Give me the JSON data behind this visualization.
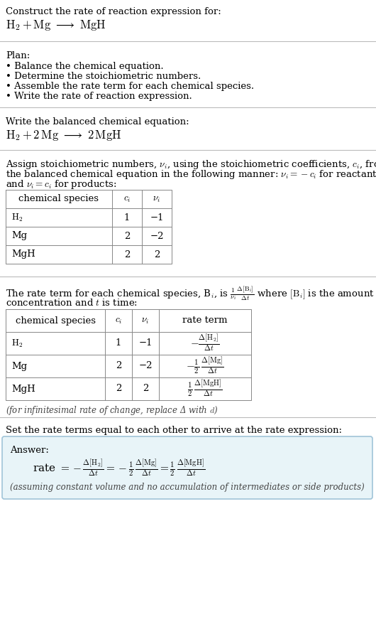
{
  "bg_color": "#ffffff",
  "text_color": "#000000",
  "sep_color": "#bbbbbb",
  "title_line1": "Construct the rate of reaction expression for:",
  "plan_header": "Plan:",
  "plan_items": [
    "• Balance the chemical equation.",
    "• Determine the stoichiometric numbers.",
    "• Assemble the rate term for each chemical species.",
    "• Write the rate of reaction expression."
  ],
  "balanced_header": "Write the balanced chemical equation:",
  "assign_text": "Assign stoichiometric numbers, $\\nu_i$, using the stoichiometric coefficients, $c_i$, from\nthe balanced chemical equation in the following manner: $\\nu_i = -c_i$ for reactants\nand $\\nu_i = c_i$ for products:",
  "table1_headers": [
    "chemical species",
    "$c_i$",
    "$\\nu_i$"
  ],
  "table1_rows": [
    [
      "$\\mathrm{H_2}$",
      "1",
      "−1"
    ],
    [
      "Mg",
      "2",
      "−2"
    ],
    [
      "MgH",
      "2",
      "2"
    ]
  ],
  "rate_desc": "The rate term for each chemical species, B$_i$, is $\\frac{1}{\\nu_i}\\frac{\\Delta[\\mathrm{B}_i]}{\\Delta t}$ where [B$_i$] is the amount\nconcentration and $t$ is time:",
  "table2_headers": [
    "chemical species",
    "$c_i$",
    "$\\nu_i$",
    "rate term"
  ],
  "infinitesimal_note": "(for infinitesimal rate of change, replace Δ with $d$)",
  "set_text": "Set the rate terms equal to each other to arrive at the rate expression:",
  "answer_bg": "#e8f4f8",
  "answer_border": "#a0c4d8",
  "answer_label": "Answer:",
  "answer_note": "(assuming constant volume and no accumulation of intermediates or side products)"
}
